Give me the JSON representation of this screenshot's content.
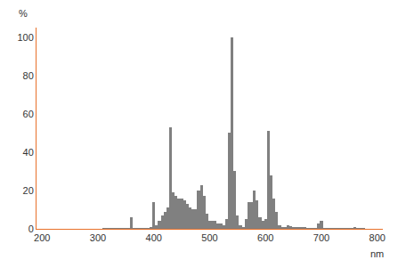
{
  "chart_data": {
    "type": "bar",
    "x_label": "nm",
    "y_label": "%",
    "x": [
      310,
      315,
      320,
      325,
      330,
      335,
      340,
      345,
      350,
      355,
      360,
      365,
      370,
      375,
      380,
      385,
      390,
      395,
      400,
      405,
      410,
      415,
      420,
      425,
      430,
      435,
      440,
      445,
      450,
      455,
      460,
      465,
      470,
      475,
      480,
      485,
      490,
      495,
      500,
      505,
      510,
      515,
      520,
      525,
      530,
      535,
      540,
      545,
      550,
      555,
      560,
      565,
      570,
      575,
      580,
      585,
      590,
      595,
      600,
      605,
      610,
      615,
      620,
      625,
      630,
      635,
      640,
      645,
      650,
      655,
      660,
      665,
      670,
      675,
      680,
      685,
      690,
      695,
      700,
      705,
      710,
      715,
      720,
      725,
      730,
      735,
      740,
      745,
      750,
      755,
      760,
      765,
      770,
      775
    ],
    "values": [
      0.5,
      0.3,
      0.3,
      0.3,
      0.5,
      0.5,
      0.5,
      0.5,
      0.5,
      0.3,
      6,
      0.5,
      0.5,
      0.3,
      0.3,
      0.3,
      0.5,
      1,
      14,
      2,
      4,
      7,
      9,
      11,
      53,
      19,
      17,
      16,
      16,
      15,
      13,
      11,
      10,
      10,
      20,
      23,
      17,
      8,
      4,
      4,
      4,
      3,
      3,
      2,
      5,
      50,
      100,
      30,
      7,
      2,
      1,
      5,
      14,
      14,
      20,
      15,
      6,
      4,
      5,
      51,
      28,
      16,
      9,
      2,
      1,
      1,
      2,
      1.5,
      1,
      1,
      1,
      0.8,
      0.8,
      0.5,
      0.5,
      0.3,
      0.3,
      3,
      4,
      0.5,
      0.3,
      0.3,
      0.3,
      0.3,
      0.3,
      0.3,
      0.3,
      0.3,
      0.3,
      0.3,
      0.8,
      0.3,
      0.3,
      0.3
    ],
    "color": "#808080",
    "axis_color": "#e8702a",
    "xlim": [
      190,
      810
    ],
    "xticks": [
      200,
      300,
      400,
      500,
      600,
      700,
      800
    ],
    "ylim": [
      0,
      105
    ],
    "yticks": [
      0,
      20,
      40,
      60,
      80,
      100
    ],
    "grid": false
  }
}
